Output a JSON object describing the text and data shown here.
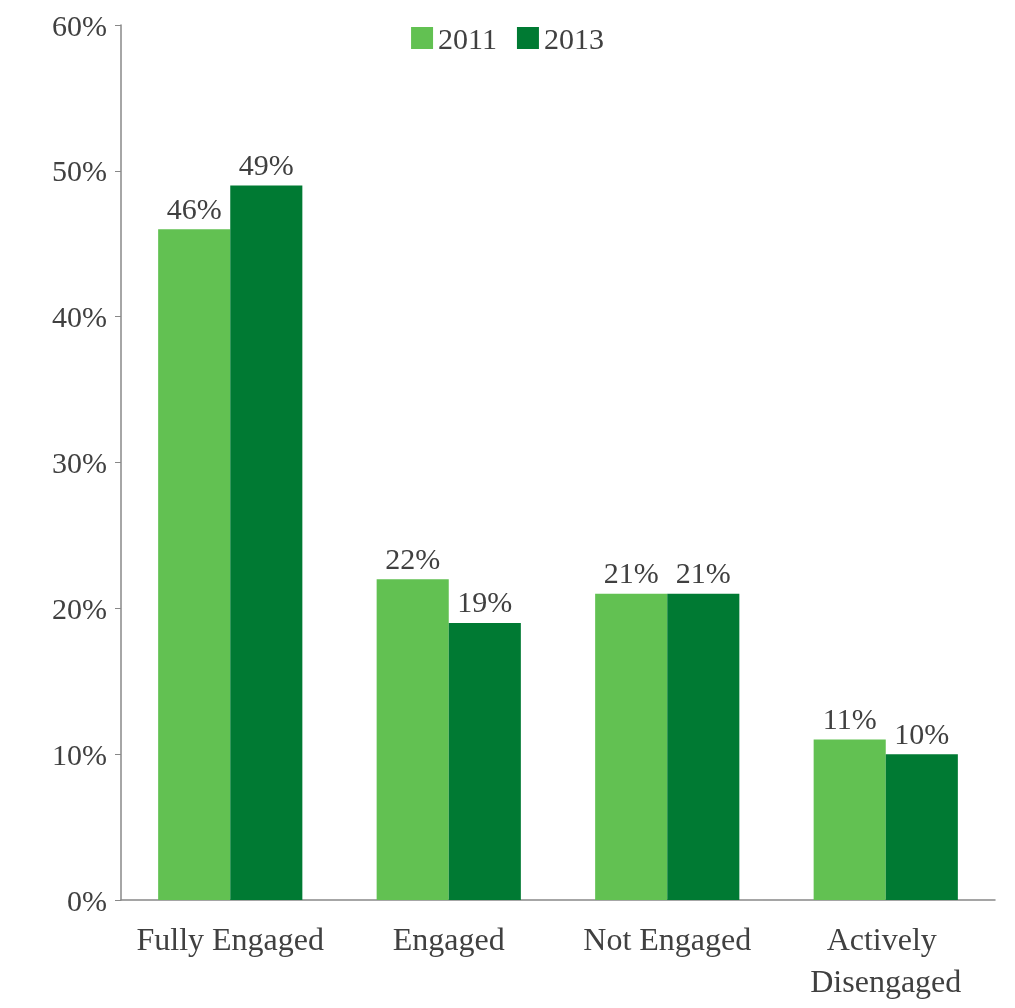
{
  "chart_data": {
    "type": "bar",
    "categories": [
      "Fully Engaged",
      "Engaged",
      "Not Engaged",
      "Actively Disengaged"
    ],
    "series": [
      {
        "name": "2011",
        "color": "#62c152",
        "values": [
          46,
          22,
          21,
          11
        ],
        "value_labels": [
          "46%",
          "22%",
          "21%",
          "11%"
        ]
      },
      {
        "name": "2013",
        "color": "#007a33",
        "values": [
          49,
          19,
          21,
          10
        ],
        "value_labels": [
          "49%",
          "19%",
          "21%",
          "10%"
        ]
      }
    ],
    "ylim": [
      0,
      60
    ],
    "yticks": [
      {
        "value": 0,
        "label": "0%"
      },
      {
        "value": 10,
        "label": "10%"
      },
      {
        "value": 20,
        "label": "20%"
      },
      {
        "value": 30,
        "label": "30%"
      },
      {
        "value": 40,
        "label": "40%"
      },
      {
        "value": 50,
        "label": "50%"
      },
      {
        "value": 60,
        "label": "60%"
      }
    ],
    "grid": false,
    "legend": "top"
  }
}
